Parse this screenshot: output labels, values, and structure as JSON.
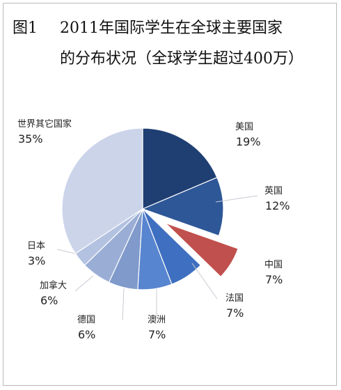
{
  "figure_label": "图1",
  "title_line1": "2011年国际学生在全球主要国家",
  "title_line2": "的分布状况（全球学生超过400万）",
  "chart_data": {
    "type": "pie",
    "title": "2011年国际学生在全球主要国家的分布状况（全球学生超过400万）",
    "unit": "%",
    "slices": [
      {
        "label": "美国",
        "value": 19,
        "value_text": "19%",
        "color": "#1f3f73"
      },
      {
        "label": "英国",
        "value": 12,
        "value_text": "12%",
        "color": "#2e5797"
      },
      {
        "label": "中国",
        "value": 7,
        "value_text": "7%",
        "color": "#c0504d",
        "exploded": true
      },
      {
        "label": "法国",
        "value": 7,
        "value_text": "7%",
        "color": "#3e6fc0"
      },
      {
        "label": "澳洲",
        "value": 7,
        "value_text": "7%",
        "color": "#5885cf"
      },
      {
        "label": "德国",
        "value": 6,
        "value_text": "6%",
        "color": "#7f9acb"
      },
      {
        "label": "加拿大",
        "value": 6,
        "value_text": "6%",
        "color": "#9aaed5"
      },
      {
        "label": "日本",
        "value": 3,
        "value_text": "3%",
        "color": "#b4c2e1"
      },
      {
        "label": "世界其它国家",
        "value": 35,
        "value_text": "35%",
        "color": "#ccd4ea"
      }
    ]
  }
}
